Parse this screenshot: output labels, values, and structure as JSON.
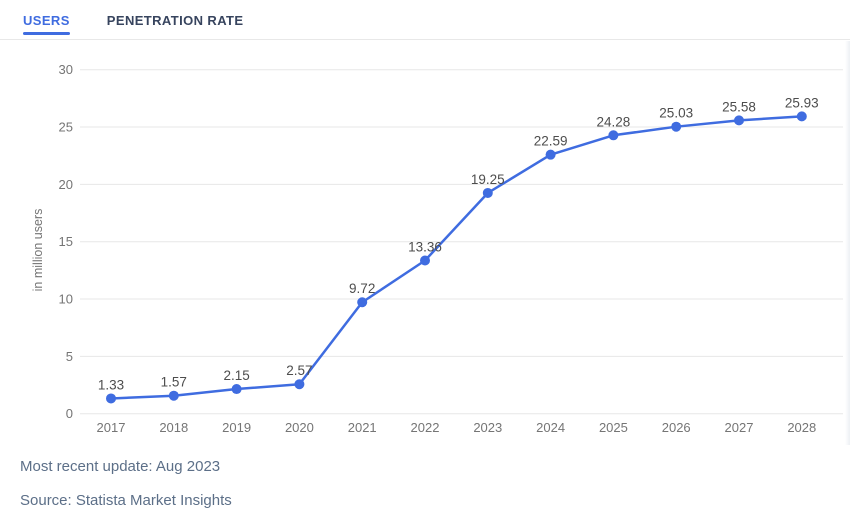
{
  "tabs": [
    {
      "label": "USERS",
      "active": true
    },
    {
      "label": "PENETRATION RATE",
      "active": false
    }
  ],
  "footer": {
    "update": "Most recent update: Aug 2023",
    "source": "Source: Statista Market Insights"
  },
  "colors": {
    "accent": "#3f6ce0",
    "grid": "#e7e7e7",
    "axis_text": "#757575",
    "data_label_text": "#4d4d4d",
    "footer_text": "#5c6f88",
    "tab_inactive": "#37445e"
  },
  "chart_data": {
    "type": "line",
    "x": [
      "2017",
      "2018",
      "2019",
      "2020",
      "2021",
      "2022",
      "2023",
      "2024",
      "2025",
      "2026",
      "2027",
      "2028"
    ],
    "series": [
      {
        "name": "Users",
        "values": [
          1.33,
          1.57,
          2.15,
          2.57,
          9.72,
          13.36,
          19.25,
          22.59,
          24.28,
          25.03,
          25.58,
          25.93
        ]
      }
    ],
    "title": "",
    "xlabel": "",
    "ylabel": "in million users",
    "ylim": [
      0,
      30
    ],
    "yticks": [
      0,
      5,
      10,
      15,
      20,
      25,
      30
    ],
    "grid": true,
    "data_labels": true,
    "legend_position": "none"
  }
}
